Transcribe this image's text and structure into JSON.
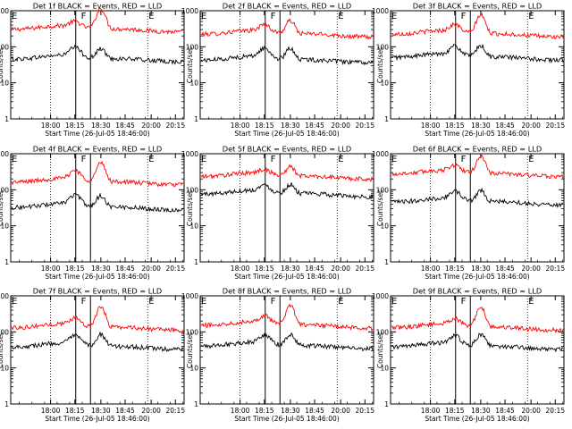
{
  "chart_data": [
    {
      "type": "line",
      "title": "Det 1f BLACK = Events, RED = LLD",
      "xlabel": "Start Time (26-Jul-05 18:46:00)",
      "ylabel": "Counts/sec",
      "yscale": "log",
      "ylim": [
        1,
        1000
      ],
      "yticks": [
        "1",
        "10",
        "100",
        "1000"
      ],
      "xticks": [
        "18:00",
        "18:15",
        "18:30",
        "18:45",
        "20:00",
        "20:15"
      ],
      "markers": [
        "E",
        "F",
        "E"
      ],
      "series": [
        {
          "color": "#ff0000",
          "base": 300,
          "bump": 0.5,
          "peak": 3.0
        },
        {
          "color": "#000000",
          "base": 45,
          "bump": 1.0,
          "peak": 1.0
        }
      ]
    },
    {
      "type": "line",
      "title": "Det 2f BLACK = Events, RED = LLD",
      "xlabel": "Start Time (26-Jul-05 18:46:00)",
      "ylabel": "Counts/sec",
      "yscale": "log",
      "ylim": [
        1,
        1000
      ],
      "yticks": [
        "1",
        "10",
        "100",
        "1000"
      ],
      "xticks": [
        "18:00",
        "18:15",
        "18:30",
        "18:45",
        "20:00",
        "20:15"
      ],
      "markers": [
        "E",
        "F",
        "E"
      ],
      "series": [
        {
          "color": "#ff0000",
          "base": 220,
          "bump": 0.7,
          "peak": 1.5
        },
        {
          "color": "#000000",
          "base": 42,
          "bump": 1.0,
          "peak": 1.2
        }
      ]
    },
    {
      "type": "line",
      "title": "Det 3f BLACK = Events, RED = LLD",
      "xlabel": "Start Time (26-Jul-05 18:46:00)",
      "ylabel": "Counts/sec",
      "yscale": "log",
      "ylim": [
        1,
        1000
      ],
      "yticks": [
        "1",
        "10",
        "100",
        "1000"
      ],
      "xticks": [
        "18:00",
        "18:15",
        "18:30",
        "18:45",
        "20:00",
        "20:15"
      ],
      "markers": [
        "E",
        "F",
        "E"
      ],
      "series": [
        {
          "color": "#ff0000",
          "base": 220,
          "bump": 0.7,
          "peak": 2.6
        },
        {
          "color": "#000000",
          "base": 50,
          "bump": 0.9,
          "peak": 1.2
        }
      ]
    },
    {
      "type": "line",
      "title": "Det 4f BLACK = Events, RED = LLD",
      "xlabel": "Start Time (26-Jul-05 18:46:00)",
      "ylabel": "Counts/sec",
      "yscale": "log",
      "ylim": [
        1,
        1000
      ],
      "yticks": [
        "1",
        "10",
        "100",
        "1000"
      ],
      "xticks": [
        "18:00",
        "18:15",
        "18:30",
        "18:45",
        "20:00",
        "20:15"
      ],
      "markers": [
        "E",
        "F",
        "E"
      ],
      "series": [
        {
          "color": "#ff0000",
          "base": 160,
          "bump": 1.0,
          "peak": 2.6
        },
        {
          "color": "#000000",
          "base": 32,
          "bump": 1.1,
          "peak": 1.2
        }
      ]
    },
    {
      "type": "line",
      "title": "Det 5f BLACK = Events, RED = LLD",
      "xlabel": "Start Time (26-Jul-05 18:46:00)",
      "ylabel": "Counts/sec",
      "yscale": "log",
      "ylim": [
        1,
        1000
      ],
      "yticks": [
        "1",
        "10",
        "100",
        "1000"
      ],
      "xticks": [
        "18:00",
        "18:15",
        "18:30",
        "18:45",
        "20:00",
        "20:15"
      ],
      "markers": [
        "E",
        "F",
        "E"
      ],
      "series": [
        {
          "color": "#ff0000",
          "base": 230,
          "bump": 0.4,
          "peak": 0.9
        },
        {
          "color": "#000000",
          "base": 75,
          "bump": 0.6,
          "peak": 0.9
        }
      ]
    },
    {
      "type": "line",
      "title": "Det 6f BLACK = Events, RED = LLD",
      "xlabel": "Start Time (26-Jul-05 18:46:00)",
      "ylabel": "Counts/sec",
      "yscale": "log",
      "ylim": [
        1,
        1000
      ],
      "yticks": [
        "1",
        "10",
        "100",
        "1000"
      ],
      "xticks": [
        "18:00",
        "18:15",
        "18:30",
        "18:45",
        "20:00",
        "20:15"
      ],
      "markers": [
        "E",
        "F",
        "E"
      ],
      "series": [
        {
          "color": "#ff0000",
          "base": 270,
          "bump": 0.6,
          "peak": 2.3
        },
        {
          "color": "#000000",
          "base": 45,
          "bump": 0.9,
          "peak": 1.2
        }
      ]
    },
    {
      "type": "line",
      "title": "Det 7f BLACK = Events, RED = LLD",
      "xlabel": "Start Time (26-Jul-05 18:46:00)",
      "ylabel": "Counts/sec",
      "yscale": "log",
      "ylim": [
        1,
        1000
      ],
      "yticks": [
        "1",
        "10",
        "100",
        "1000"
      ],
      "xticks": [
        "18:00",
        "18:15",
        "18:30",
        "18:45",
        "20:00",
        "20:15"
      ],
      "markers": [
        "E",
        "F",
        "E"
      ],
      "series": [
        {
          "color": "#ff0000",
          "base": 130,
          "bump": 0.7,
          "peak": 2.8
        },
        {
          "color": "#000000",
          "base": 38,
          "bump": 0.9,
          "peak": 1.3
        }
      ]
    },
    {
      "type": "line",
      "title": "Det 8f BLACK = Events, RED = LLD",
      "xlabel": "Start Time (26-Jul-05 18:46:00)",
      "ylabel": "Counts/sec",
      "yscale": "log",
      "ylim": [
        1,
        1000
      ],
      "yticks": [
        "1",
        "10",
        "100",
        "1000"
      ],
      "xticks": [
        "18:00",
        "18:15",
        "18:30",
        "18:45",
        "20:00",
        "20:15"
      ],
      "markers": [
        "E",
        "F",
        "E"
      ],
      "series": [
        {
          "color": "#ff0000",
          "base": 150,
          "bump": 0.7,
          "peak": 2.6
        },
        {
          "color": "#000000",
          "base": 40,
          "bump": 0.9,
          "peak": 1.2
        }
      ]
    },
    {
      "type": "line",
      "title": "Det 9f BLACK = Events, RED = LLD",
      "xlabel": "Start Time (26-Jul-05 18:46:00)",
      "ylabel": "Counts/sec",
      "yscale": "log",
      "ylim": [
        1,
        1000
      ],
      "yticks": [
        "1",
        "10",
        "100",
        "1000"
      ],
      "xticks": [
        "18:00",
        "18:15",
        "18:30",
        "18:45",
        "20:00",
        "20:15"
      ],
      "markers": [
        "E",
        "F",
        "E"
      ],
      "series": [
        {
          "color": "#ff0000",
          "base": 130,
          "bump": 0.6,
          "peak": 2.9
        },
        {
          "color": "#000000",
          "base": 38,
          "bump": 0.9,
          "peak": 1.3
        }
      ]
    }
  ]
}
